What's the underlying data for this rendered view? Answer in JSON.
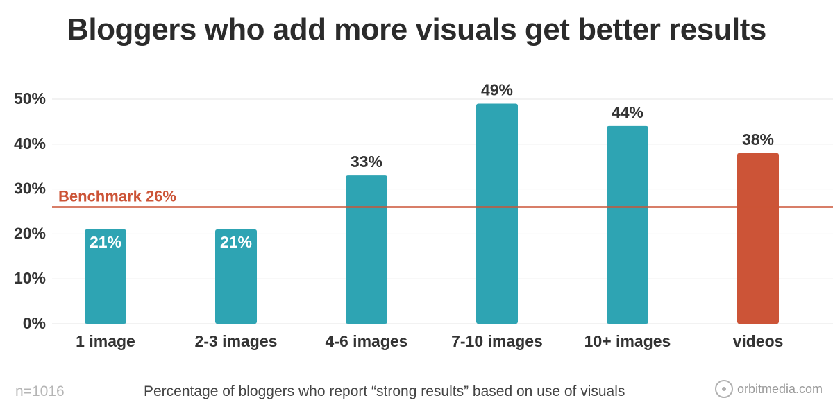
{
  "title": "Bloggers who add more visuals get better results",
  "footnote": "n=1016",
  "caption": "Percentage of bloggers who report “strong results” based on use of visuals",
  "brand": {
    "name": "orbitmedia.com",
    "icon": "orbit-logo-icon"
  },
  "colors": {
    "bar": "#2ea4b3",
    "highlight": "#cc5437",
    "grid": "#e6e6e6",
    "text": "#333333"
  },
  "chart_data": {
    "type": "bar",
    "categories": [
      "1 image",
      "2-3 images",
      "4-6 images",
      "7-10 images",
      "10+ images",
      "videos"
    ],
    "values": [
      21,
      21,
      33,
      49,
      44,
      38
    ],
    "value_labels": [
      "21%",
      "21%",
      "33%",
      "49%",
      "44%",
      "38%"
    ],
    "highlight_index": 5,
    "ylim": [
      0,
      50
    ],
    "yticks": [
      0,
      10,
      20,
      30,
      40,
      50
    ],
    "ytick_labels": [
      "0%",
      "10%",
      "20%",
      "30%",
      "40%",
      "50%"
    ],
    "benchmark": {
      "label": "Benchmark 26%",
      "value": 26
    },
    "grid": true
  }
}
